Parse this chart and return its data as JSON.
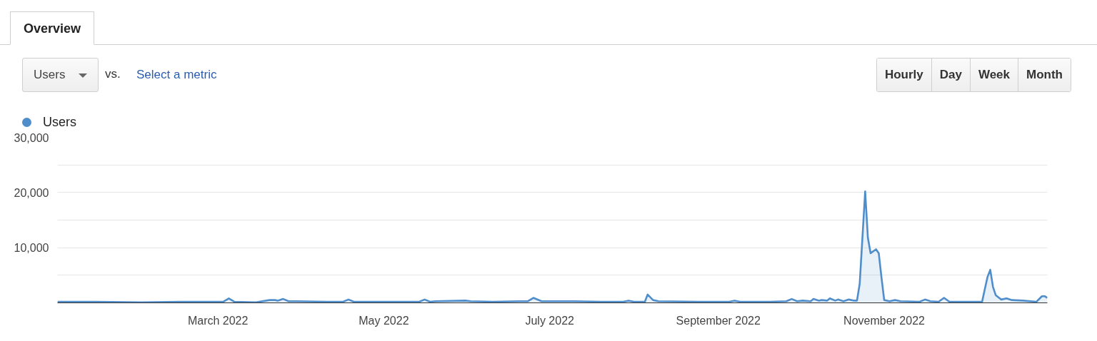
{
  "chart_data": {
    "type": "area",
    "annotations": [
      "Overview",
      "Users",
      "vs.",
      "Select a metric",
      "Hourly",
      "Day",
      "Week",
      "Month"
    ],
    "x": [
      "2022-01-01",
      "2022-01-15",
      "2022-02-01",
      "2022-02-15",
      "2022-03-03",
      "2022-03-05",
      "2022-03-07",
      "2022-03-15",
      "2022-03-20",
      "2022-03-22",
      "2022-03-23",
      "2022-03-25",
      "2022-03-27",
      "2022-03-30",
      "2022-04-10",
      "2022-04-16",
      "2022-04-18",
      "2022-04-20",
      "2022-05-01",
      "2022-05-14",
      "2022-05-16",
      "2022-05-18",
      "2022-05-20",
      "2022-05-31",
      "2022-06-02",
      "2022-06-10",
      "2022-06-20",
      "2022-06-23",
      "2022-06-25",
      "2022-06-28",
      "2022-07-10",
      "2022-07-20",
      "2022-07-28",
      "2022-07-30",
      "2022-08-01",
      "2022-08-05",
      "2022-08-06",
      "2022-08-08",
      "2022-08-10",
      "2022-08-25",
      "2022-09-05",
      "2022-09-07",
      "2022-09-09",
      "2022-09-20",
      "2022-09-26",
      "2022-09-28",
      "2022-09-30",
      "2022-10-02",
      "2022-10-05",
      "2022-10-06",
      "2022-10-08",
      "2022-10-09",
      "2022-10-11",
      "2022-10-12",
      "2022-10-14",
      "2022-10-15",
      "2022-10-17",
      "2022-10-19",
      "2022-10-21",
      "2022-10-22",
      "2022-10-23",
      "2022-10-25",
      "2022-10-26",
      "2022-10-27",
      "2022-10-29",
      "2022-10-30",
      "2022-10-31",
      "2022-11-01",
      "2022-11-03",
      "2022-11-05",
      "2022-11-07",
      "2022-11-14",
      "2022-11-16",
      "2022-11-18",
      "2022-11-21",
      "2022-11-23",
      "2022-11-25",
      "2022-12-07",
      "2022-12-08",
      "2022-12-09",
      "2022-12-10",
      "2022-12-11",
      "2022-12-12",
      "2022-12-14",
      "2022-12-16",
      "2022-12-18",
      "2022-12-22",
      "2022-12-27",
      "2022-12-29",
      "2022-12-30",
      "2022-12-31"
    ],
    "series": [
      {
        "name": "Users",
        "color": "#4f8dcb",
        "values": [
          200,
          200,
          100,
          200,
          200,
          800,
          200,
          100,
          500,
          500,
          400,
          700,
          300,
          300,
          200,
          200,
          600,
          200,
          200,
          200,
          600,
          200,
          300,
          400,
          300,
          200,
          300,
          300,
          900,
          300,
          300,
          200,
          200,
          400,
          200,
          200,
          1500,
          500,
          300,
          200,
          200,
          400,
          200,
          200,
          300,
          700,
          300,
          400,
          300,
          700,
          400,
          500,
          400,
          800,
          400,
          600,
          300,
          600,
          400,
          400,
          3500,
          20200,
          11800,
          9000,
          9700,
          9000,
          4600,
          500,
          300,
          500,
          300,
          200,
          600,
          300,
          200,
          900,
          200,
          200,
          2500,
          4700,
          6000,
          2900,
          1400,
          600,
          800,
          500,
          400,
          200,
          1200,
          1200,
          900
        ]
      }
    ],
    "xlim": [
      "2022-01-01",
      "2022-12-31"
    ],
    "xticks": [
      {
        "value": "2022-03-01",
        "label": "March 2022"
      },
      {
        "value": "2022-05-01",
        "label": "May 2022"
      },
      {
        "value": "2022-07-01",
        "label": "July 2022"
      },
      {
        "value": "2022-09-01",
        "label": "September 2022"
      },
      {
        "value": "2022-11-01",
        "label": "November 2022"
      }
    ],
    "ylim": [
      0,
      30000
    ],
    "yticks": [
      {
        "value": 0,
        "label": null
      },
      {
        "value": 5000,
        "label": null
      },
      {
        "value": 10000,
        "label": "10,000"
      },
      {
        "value": 15000,
        "label": null
      },
      {
        "value": 20000,
        "label": "20,000"
      },
      {
        "value": 25000,
        "label": null
      },
      {
        "value": 30000,
        "label": "30,000"
      }
    ],
    "grid": "y",
    "legend": "top left"
  }
}
